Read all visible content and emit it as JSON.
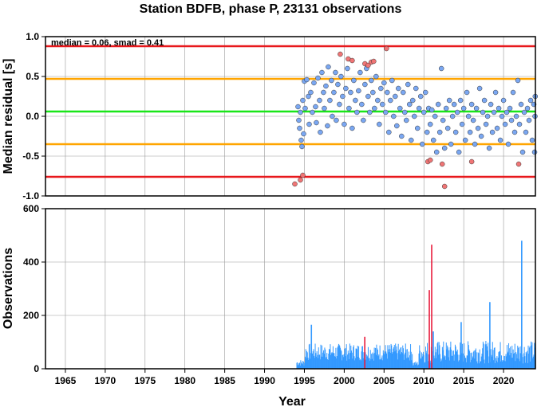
{
  "title": "Station BDFB, phase P, 23131 observations",
  "annotation": "median = 0.06, smad = 0.41",
  "x_axis": {
    "label": "Year",
    "range": [
      1962.5,
      2024.0
    ],
    "ticks": [
      1965,
      1970,
      1975,
      1980,
      1985,
      1990,
      1995,
      2000,
      2005,
      2010,
      2015,
      2020
    ]
  },
  "chart_data": [
    {
      "type": "scatter",
      "ylabel": "Median residual [s]",
      "ylim": [
        -1.0,
        1.0
      ],
      "yticks": [
        1.0,
        0.5,
        0.0,
        -0.5,
        -1.0
      ],
      "grid": true,
      "reference_lines": [
        {
          "value": 0.88,
          "color": "#e8181c"
        },
        {
          "value": 0.47,
          "color": "#ffa500"
        },
        {
          "value": 0.06,
          "color": "#19e619"
        },
        {
          "value": -0.35,
          "color": "#ffa500"
        },
        {
          "value": -0.76,
          "color": "#e8181c"
        }
      ],
      "series": [
        {
          "color": "#7aa7f2",
          "points": [
            [
              1994.2,
              0.12
            ],
            [
              1994.3,
              -0.05
            ],
            [
              1994.4,
              -0.15
            ],
            [
              1994.5,
              0.05
            ],
            [
              1994.6,
              -0.3
            ],
            [
              1994.7,
              -0.38
            ],
            [
              1994.8,
              0.2
            ],
            [
              1994.9,
              -0.22
            ],
            [
              1995.0,
              0.44
            ],
            [
              1995.1,
              0.1
            ],
            [
              1995.3,
              0.46
            ],
            [
              1995.5,
              0.25
            ],
            [
              1995.6,
              -0.1
            ],
            [
              1995.8,
              0.3
            ],
            [
              1996.0,
              0.05
            ],
            [
              1996.2,
              0.42
            ],
            [
              1996.4,
              0.12
            ],
            [
              1996.5,
              -0.08
            ],
            [
              1996.7,
              0.48
            ],
            [
              1996.9,
              0.2
            ],
            [
              1997.0,
              -0.2
            ],
            [
              1997.2,
              0.55
            ],
            [
              1997.4,
              0.3
            ],
            [
              1997.5,
              0.1
            ],
            [
              1997.7,
              0.38
            ],
            [
              1997.9,
              -0.12
            ],
            [
              1998.0,
              0.62
            ],
            [
              1998.2,
              0.2
            ],
            [
              1998.4,
              0.45
            ],
            [
              1998.5,
              0.0
            ],
            [
              1998.7,
              0.3
            ],
            [
              1998.9,
              0.55
            ],
            [
              1999.0,
              -0.05
            ],
            [
              1999.2,
              0.4
            ],
            [
              1999.4,
              0.15
            ],
            [
              1999.6,
              0.5
            ],
            [
              1999.8,
              0.25
            ],
            [
              2000.0,
              -0.1
            ],
            [
              2000.2,
              0.35
            ],
            [
              2000.4,
              0.6
            ],
            [
              2000.6,
              0.1
            ],
            [
              2000.8,
              0.3
            ],
            [
              2001.0,
              -0.15
            ],
            [
              2001.2,
              0.45
            ],
            [
              2001.4,
              0.2
            ],
            [
              2001.6,
              0.05
            ],
            [
              2001.8,
              0.32
            ],
            [
              2002.0,
              0.55
            ],
            [
              2002.2,
              0.15
            ],
            [
              2002.4,
              -0.05
            ],
            [
              2002.6,
              0.4
            ],
            [
              2002.8,
              0.6
            ],
            [
              2003.0,
              0.25
            ],
            [
              2003.2,
              0.05
            ],
            [
              2003.4,
              0.45
            ],
            [
              2003.6,
              0.3
            ],
            [
              2003.8,
              0.1
            ],
            [
              2004.0,
              0.5
            ],
            [
              2004.2,
              0.2
            ],
            [
              2004.4,
              -0.1
            ],
            [
              2004.6,
              0.35
            ],
            [
              2004.8,
              0.15
            ],
            [
              2005.0,
              0.42
            ],
            [
              2005.2,
              0.05
            ],
            [
              2005.4,
              0.3
            ],
            [
              2005.6,
              -0.2
            ],
            [
              2005.8,
              0.2
            ],
            [
              2006.0,
              0.45
            ],
            [
              2006.2,
              0.0
            ],
            [
              2006.4,
              0.25
            ],
            [
              2006.6,
              -0.12
            ],
            [
              2006.8,
              0.35
            ],
            [
              2007.0,
              0.1
            ],
            [
              2007.2,
              -0.25
            ],
            [
              2007.4,
              0.3
            ],
            [
              2007.6,
              0.05
            ],
            [
              2007.8,
              -0.05
            ],
            [
              2008.0,
              0.4
            ],
            [
              2008.2,
              0.15
            ],
            [
              2008.4,
              -0.3
            ],
            [
              2008.6,
              0.2
            ],
            [
              2008.8,
              0.0
            ],
            [
              2009.0,
              0.35
            ],
            [
              2009.2,
              -0.15
            ],
            [
              2009.4,
              0.1
            ],
            [
              2009.6,
              0.25
            ],
            [
              2009.8,
              -0.35
            ],
            [
              2010.0,
              0.05
            ],
            [
              2010.2,
              0.3
            ],
            [
              2010.4,
              -0.2
            ],
            [
              2010.6,
              0.1
            ],
            [
              2010.8,
              -0.1
            ],
            [
              2011.0,
              0.08
            ],
            [
              2011.2,
              -0.3
            ],
            [
              2011.4,
              0.0
            ],
            [
              2011.6,
              -0.45
            ],
            [
              2011.8,
              0.15
            ],
            [
              2012.0,
              -0.2
            ],
            [
              2012.2,
              0.6
            ],
            [
              2012.4,
              -0.05
            ],
            [
              2012.6,
              -0.4
            ],
            [
              2012.8,
              0.1
            ],
            [
              2013.0,
              -0.15
            ],
            [
              2013.2,
              0.2
            ],
            [
              2013.4,
              -0.35
            ],
            [
              2013.6,
              0.0
            ],
            [
              2013.8,
              0.15
            ],
            [
              2014.0,
              -0.2
            ],
            [
              2014.2,
              0.05
            ],
            [
              2014.4,
              -0.45
            ],
            [
              2014.6,
              0.2
            ],
            [
              2014.8,
              -0.1
            ],
            [
              2015.0,
              0.1
            ],
            [
              2015.2,
              -0.3
            ],
            [
              2015.4,
              0.3
            ],
            [
              2015.6,
              0.0
            ],
            [
              2015.8,
              -0.2
            ],
            [
              2016.0,
              0.15
            ],
            [
              2016.2,
              -0.05
            ],
            [
              2016.4,
              -0.35
            ],
            [
              2016.6,
              0.1
            ],
            [
              2016.8,
              -0.15
            ],
            [
              2017.0,
              0.35
            ],
            [
              2017.2,
              -0.25
            ],
            [
              2017.4,
              0.05
            ],
            [
              2017.6,
              0.2
            ],
            [
              2017.8,
              -0.1
            ],
            [
              2018.0,
              0.0
            ],
            [
              2018.2,
              -0.4
            ],
            [
              2018.4,
              0.15
            ],
            [
              2018.6,
              -0.2
            ],
            [
              2018.8,
              0.05
            ],
            [
              2019.0,
              0.3
            ],
            [
              2019.2,
              -0.15
            ],
            [
              2019.4,
              0.1
            ],
            [
              2019.6,
              -0.3
            ],
            [
              2019.8,
              0.0
            ],
            [
              2020.0,
              0.2
            ],
            [
              2020.2,
              -0.1
            ],
            [
              2020.4,
              0.05
            ],
            [
              2020.6,
              -0.35
            ],
            [
              2020.8,
              0.1
            ],
            [
              2021.0,
              -0.05
            ],
            [
              2021.2,
              0.3
            ],
            [
              2021.4,
              -0.2
            ],
            [
              2021.6,
              0.0
            ],
            [
              2021.8,
              0.45
            ],
            [
              2022.0,
              -0.1
            ],
            [
              2022.2,
              0.15
            ],
            [
              2022.4,
              -0.45
            ],
            [
              2022.6,
              0.05
            ],
            [
              2022.8,
              -0.2
            ],
            [
              2023.0,
              0.1
            ],
            [
              2023.2,
              -0.05
            ],
            [
              2023.4,
              0.2
            ],
            [
              2023.6,
              -0.3
            ],
            [
              2023.8,
              0.15
            ],
            [
              2023.9,
              -0.45
            ],
            [
              2023.95,
              0.0
            ],
            [
              2023.98,
              0.25
            ]
          ]
        },
        {
          "color": "#f07575",
          "points": [
            [
              1993.8,
              -0.85
            ],
            [
              1994.5,
              -0.8
            ],
            [
              1994.8,
              -0.74
            ],
            [
              1999.5,
              0.78
            ],
            [
              2000.5,
              0.72
            ],
            [
              2001.0,
              0.7
            ],
            [
              2002.6,
              0.66
            ],
            [
              2003.0,
              0.64
            ],
            [
              2003.4,
              0.68
            ],
            [
              2003.7,
              0.69
            ],
            [
              2005.3,
              0.85
            ],
            [
              2010.5,
              -0.57
            ],
            [
              2010.8,
              -0.55
            ],
            [
              2012.3,
              -0.6
            ],
            [
              2012.6,
              -0.88
            ],
            [
              2016.0,
              -0.57
            ],
            [
              2021.9,
              -0.6
            ]
          ]
        }
      ]
    },
    {
      "type": "bar",
      "ylabel": "Observations",
      "ylim": [
        0,
        600
      ],
      "yticks": [
        600,
        400,
        200,
        0
      ],
      "grid": true,
      "colors": {
        "normal": "#3399ff",
        "spike": "#e81c3c"
      },
      "bars": [
        {
          "year": 1995.8,
          "value": 165
        },
        {
          "year": 2002.5,
          "value": 120,
          "spike": true
        },
        {
          "year": 2010.6,
          "value": 295,
          "spike": true
        },
        {
          "year": 2010.9,
          "value": 465,
          "spike": true
        },
        {
          "year": 2011.1,
          "value": 140
        },
        {
          "year": 2014.6,
          "value": 175
        },
        {
          "year": 2018.2,
          "value": 250
        },
        {
          "year": 2022.2,
          "value": 480
        }
      ]
    }
  ]
}
